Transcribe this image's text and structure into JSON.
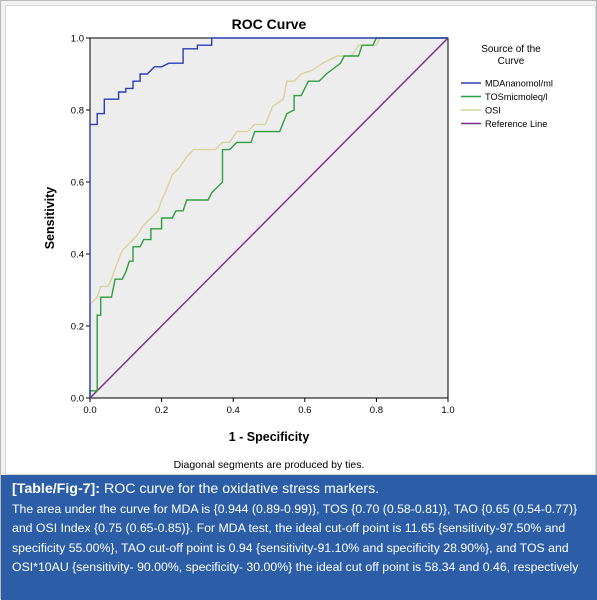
{
  "chart_data": {
    "type": "line",
    "title": "ROC Curve",
    "xlabel": "1 - Specificity",
    "ylabel": "Sensitivity",
    "xlim": [
      0,
      1
    ],
    "ylim": [
      0,
      1
    ],
    "x_ticks": [
      "0.0",
      "0.2",
      "0.4",
      "0.6",
      "0.8",
      "1.0"
    ],
    "y_ticks": [
      "0.0",
      "0.2",
      "0.4",
      "0.6",
      "0.8",
      "1.0"
    ],
    "grid": false,
    "legend_title": "Source of the Curve",
    "legend_position": "right",
    "footnote": "Diagonal segments are produced by ties.",
    "series": [
      {
        "name": "MDAnanomol/ml",
        "color": "#2a3eb1",
        "points": [
          [
            0,
            0
          ],
          [
            0,
            0.76
          ],
          [
            0.02,
            0.76
          ],
          [
            0.02,
            0.79
          ],
          [
            0.04,
            0.79
          ],
          [
            0.04,
            0.83
          ],
          [
            0.08,
            0.83
          ],
          [
            0.08,
            0.85
          ],
          [
            0.1,
            0.85
          ],
          [
            0.1,
            0.86
          ],
          [
            0.12,
            0.86
          ],
          [
            0.12,
            0.88
          ],
          [
            0.14,
            0.88
          ],
          [
            0.14,
            0.9
          ],
          [
            0.16,
            0.9
          ],
          [
            0.18,
            0.92
          ],
          [
            0.2,
            0.92
          ],
          [
            0.22,
            0.93
          ],
          [
            0.26,
            0.93
          ],
          [
            0.26,
            0.97
          ],
          [
            0.3,
            0.97
          ],
          [
            0.3,
            0.98
          ],
          [
            0.34,
            0.98
          ],
          [
            0.34,
            1
          ],
          [
            1,
            1
          ]
        ]
      },
      {
        "name": "TOSmicmoleq/l",
        "color": "#2e9e3e",
        "points": [
          [
            0,
            0
          ],
          [
            0,
            0.02
          ],
          [
            0.02,
            0.02
          ],
          [
            0.02,
            0.23
          ],
          [
            0.03,
            0.23
          ],
          [
            0.03,
            0.28
          ],
          [
            0.06,
            0.28
          ],
          [
            0.07,
            0.33
          ],
          [
            0.09,
            0.33
          ],
          [
            0.1,
            0.35
          ],
          [
            0.11,
            0.38
          ],
          [
            0.12,
            0.38
          ],
          [
            0.12,
            0.42
          ],
          [
            0.14,
            0.42
          ],
          [
            0.15,
            0.44
          ],
          [
            0.17,
            0.44
          ],
          [
            0.17,
            0.47
          ],
          [
            0.2,
            0.47
          ],
          [
            0.2,
            0.5
          ],
          [
            0.23,
            0.5
          ],
          [
            0.24,
            0.52
          ],
          [
            0.26,
            0.52
          ],
          [
            0.27,
            0.55
          ],
          [
            0.33,
            0.55
          ],
          [
            0.34,
            0.57
          ],
          [
            0.37,
            0.6
          ],
          [
            0.37,
            0.69
          ],
          [
            0.39,
            0.69
          ],
          [
            0.41,
            0.71
          ],
          [
            0.45,
            0.71
          ],
          [
            0.46,
            0.74
          ],
          [
            0.53,
            0.74
          ],
          [
            0.55,
            0.79
          ],
          [
            0.57,
            0.8
          ],
          [
            0.57,
            0.84
          ],
          [
            0.59,
            0.84
          ],
          [
            0.61,
            0.88
          ],
          [
            0.64,
            0.88
          ],
          [
            0.66,
            0.9
          ],
          [
            0.7,
            0.93
          ],
          [
            0.71,
            0.95
          ],
          [
            0.75,
            0.95
          ],
          [
            0.76,
            0.98
          ],
          [
            0.79,
            0.98
          ],
          [
            0.8,
            1
          ],
          [
            1,
            1
          ]
        ]
      },
      {
        "name": "OSI",
        "color": "#d8d39a",
        "points": [
          [
            0,
            0
          ],
          [
            0,
            0.26
          ],
          [
            0.02,
            0.28
          ],
          [
            0.03,
            0.31
          ],
          [
            0.05,
            0.31
          ],
          [
            0.06,
            0.33
          ],
          [
            0.07,
            0.36
          ],
          [
            0.09,
            0.41
          ],
          [
            0.11,
            0.43
          ],
          [
            0.13,
            0.45
          ],
          [
            0.15,
            0.48
          ],
          [
            0.17,
            0.5
          ],
          [
            0.19,
            0.52
          ],
          [
            0.2,
            0.55
          ],
          [
            0.21,
            0.57
          ],
          [
            0.23,
            0.62
          ],
          [
            0.25,
            0.64
          ],
          [
            0.27,
            0.67
          ],
          [
            0.29,
            0.69
          ],
          [
            0.31,
            0.69
          ],
          [
            0.33,
            0.69
          ],
          [
            0.35,
            0.69
          ],
          [
            0.37,
            0.71
          ],
          [
            0.39,
            0.71
          ],
          [
            0.41,
            0.74
          ],
          [
            0.44,
            0.74
          ],
          [
            0.46,
            0.76
          ],
          [
            0.49,
            0.76
          ],
          [
            0.51,
            0.81
          ],
          [
            0.54,
            0.83
          ],
          [
            0.55,
            0.88
          ],
          [
            0.57,
            0.88
          ],
          [
            0.59,
            0.9
          ],
          [
            0.62,
            0.91
          ],
          [
            0.65,
            0.93
          ],
          [
            0.69,
            0.95
          ],
          [
            0.73,
            0.95
          ],
          [
            0.75,
            0.98
          ],
          [
            0.8,
            0.98
          ],
          [
            0.81,
            1
          ],
          [
            1,
            1
          ]
        ]
      },
      {
        "name": "Reference Line",
        "color": "#7a2a8c",
        "points": [
          [
            0,
            0
          ],
          [
            1,
            1
          ]
        ]
      }
    ]
  },
  "caption": {
    "tag": "[Table/Fig-7]:",
    "headline": " ROC curve for the oxidative stress markers.",
    "body": "The area under the curve for MDA is {0.944 (0.89-0.99)}, TOS {0.70 (0.58-0.81)}, TAO {0.65 (0.54-0.77)} and OSI Index {0.75 (0.65-0.85)}. For MDA test, the ideal cut-off point is 11.65 {sensitivity-97.50% and specificity 55.00%}, TAO cut-off point is 0.94 {sensitivity-91.10% and specificity 28.90%}, and TOS and OSI*10AU {sensitivity- 90.00%, specificity- 30.00%} the ideal cut off point is 58.34 and 0.46, respectively"
  }
}
